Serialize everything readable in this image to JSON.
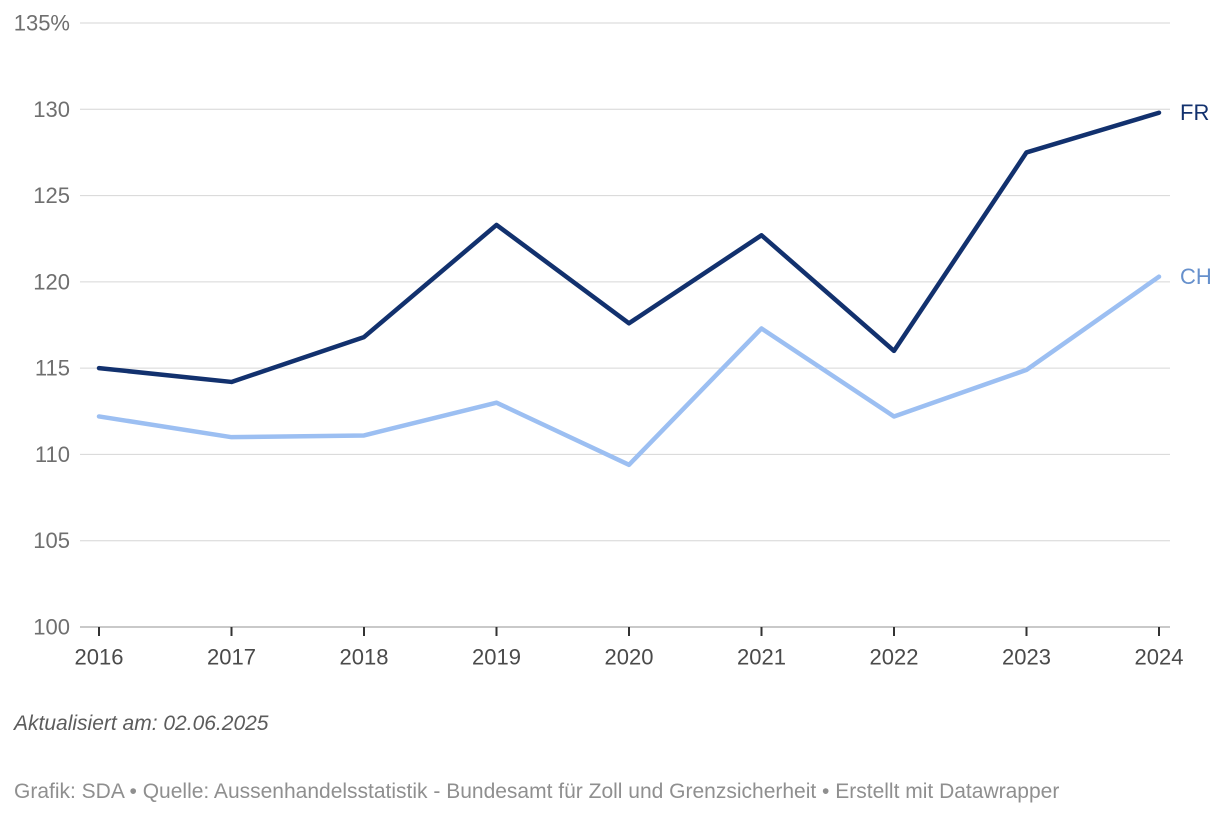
{
  "chart_data": {
    "type": "line",
    "x": [
      2016,
      2017,
      2018,
      2019,
      2020,
      2021,
      2022,
      2023,
      2024
    ],
    "x_tick_labels": [
      "2016",
      "2017",
      "2018",
      "2019",
      "2020",
      "2021",
      "2022",
      "2023",
      "2024"
    ],
    "series": [
      {
        "name": "FR",
        "color": "#12316e",
        "label_color": "#12316e",
        "values": [
          115.0,
          114.2,
          116.8,
          123.3,
          117.6,
          122.7,
          116.0,
          127.5,
          129.8
        ]
      },
      {
        "name": "CH",
        "color": "#9cbff2",
        "label_color": "#6690cc",
        "values": [
          112.2,
          111.0,
          111.1,
          113.0,
          109.4,
          117.3,
          112.2,
          114.9,
          120.3
        ]
      }
    ],
    "title": "",
    "xlabel": "",
    "ylabel": "",
    "ylim": [
      100,
      135
    ],
    "ytick_step": 5,
    "y_tick_labels": [
      "100",
      "105",
      "110",
      "115",
      "120",
      "125",
      "130",
      "135%"
    ],
    "grid": true,
    "legend_position": "line-end-right"
  },
  "colors": {
    "gridline": "#d6d6d6",
    "baseline": "#c9c9c9",
    "tick_mark": "#333333",
    "ytick_text": "#6f6f6f",
    "xtick_text": "#4a4a4a"
  },
  "footer": {
    "updated": "Aktualisiert am: 02.06.2025",
    "attribution": "Grafik: SDA • Quelle: Aussenhandelsstatistik - Bundesamt für Zoll und Grenzsicherheit • Erstellt mit Datawrapper"
  }
}
